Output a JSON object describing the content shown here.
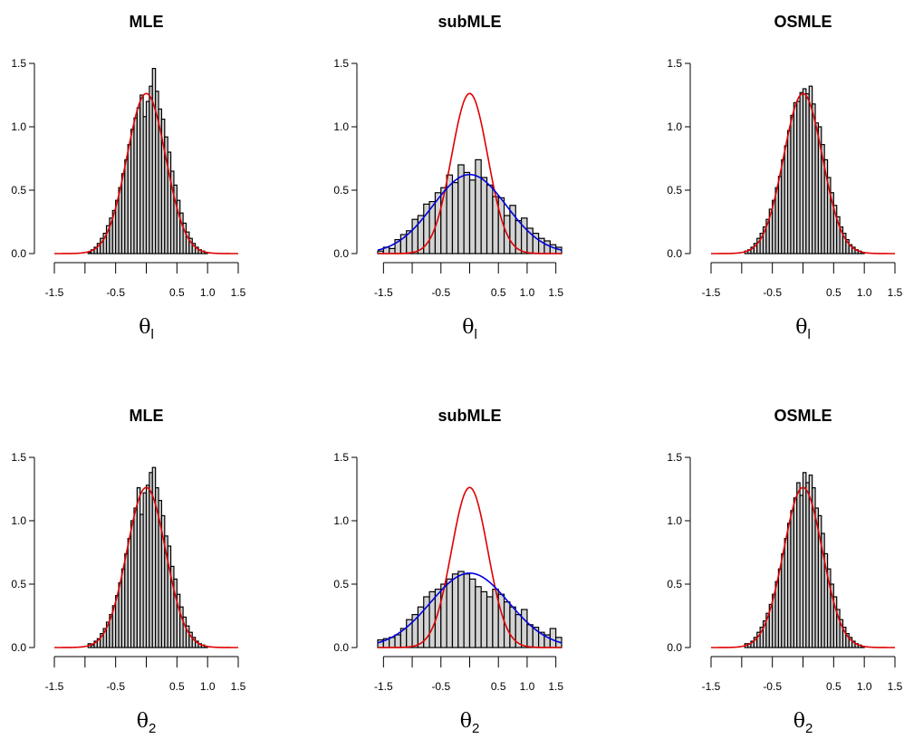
{
  "colors": {
    "normal_curve": "#e00000",
    "fitted_curve": "#0000e0",
    "bar_fill": "#d3d3d3",
    "bar_stroke": "#000000"
  },
  "chart_data": [
    {
      "type": "bar",
      "title": "MLE",
      "xlabel_base": "θ",
      "xlabel_sub": "l",
      "xlim": [
        -1.5,
        1.5
      ],
      "ylim": [
        0,
        1.5
      ],
      "xticks": [
        -1.5,
        -1.0,
        -0.5,
        0.0,
        0.5,
        1.0,
        1.5
      ],
      "xtick_labels": [
        "-1.5",
        "",
        "-0.5",
        "",
        "0.5",
        "1.0",
        "1.5"
      ],
      "yticks": [
        0.0,
        0.5,
        1.0,
        1.5
      ],
      "ytick_labels": [
        "0.0",
        "0.5",
        "1.0",
        "1.5"
      ],
      "bin_start": -0.95,
      "bin_width": 0.05,
      "values": [
        0.01,
        0.03,
        0.05,
        0.08,
        0.12,
        0.16,
        0.22,
        0.28,
        0.34,
        0.42,
        0.52,
        0.63,
        0.74,
        0.86,
        0.98,
        1.07,
        1.15,
        1.25,
        1.08,
        1.2,
        1.32,
        1.46,
        1.28,
        1.14,
        1.06,
        0.92,
        0.8,
        0.65,
        0.54,
        0.42,
        0.32,
        0.24,
        0.17,
        0.12,
        0.08,
        0.05,
        0.03,
        0.02,
        0.01
      ],
      "series": [
        {
          "name": "",
          "kind": "normal",
          "mean": 0.0,
          "sd": 0.316,
          "color": "#e00000"
        }
      ]
    },
    {
      "type": "bar",
      "title": "subMLE",
      "xlabel_base": "θ",
      "xlabel_sub": "l",
      "xlim": [
        -1.6,
        1.6
      ],
      "ylim": [
        0,
        1.5
      ],
      "xticks": [
        -1.5,
        -1.0,
        -0.5,
        0.0,
        0.5,
        1.0,
        1.5
      ],
      "xtick_labels": [
        "-1.5",
        "",
        "-0.5",
        "",
        "0.5",
        "1.0",
        "1.5"
      ],
      "yticks": [
        0.0,
        0.5,
        1.0,
        1.5
      ],
      "ytick_labels": [
        "0.0",
        "0.5",
        "1.0",
        "1.5"
      ],
      "bin_start": -1.6,
      "bin_width": 0.1,
      "values": [
        0.02,
        0.05,
        0.04,
        0.11,
        0.15,
        0.18,
        0.27,
        0.3,
        0.39,
        0.41,
        0.48,
        0.52,
        0.62,
        0.56,
        0.7,
        0.64,
        0.58,
        0.74,
        0.6,
        0.54,
        0.45,
        0.44,
        0.3,
        0.38,
        0.26,
        0.28,
        0.2,
        0.16,
        0.12,
        0.1,
        0.07,
        0.05
      ],
      "series": [
        {
          "name": "",
          "kind": "normal",
          "mean": 0.0,
          "sd": 0.316,
          "color": "#e00000"
        },
        {
          "name": "",
          "kind": "normal",
          "mean": 0.0,
          "sd": 0.64,
          "color": "#0000e0"
        }
      ]
    },
    {
      "type": "bar",
      "title": "OSMLE",
      "xlabel_base": "θ",
      "xlabel_sub": "l",
      "xlim": [
        -1.5,
        1.5
      ],
      "ylim": [
        0,
        1.5
      ],
      "xticks": [
        -1.5,
        -1.0,
        -0.5,
        0.0,
        0.5,
        1.0,
        1.5
      ],
      "xtick_labels": [
        "-1.5",
        "",
        "-0.5",
        "",
        "0.5",
        "1.0",
        "1.5"
      ],
      "yticks": [
        0.0,
        0.5,
        1.0,
        1.5
      ],
      "ytick_labels": [
        "0.0",
        "0.5",
        "1.0",
        "1.5"
      ],
      "bin_start": -0.95,
      "bin_width": 0.05,
      "values": [
        0.02,
        0.03,
        0.05,
        0.08,
        0.12,
        0.16,
        0.21,
        0.27,
        0.35,
        0.42,
        0.52,
        0.61,
        0.74,
        0.85,
        0.97,
        1.09,
        1.19,
        1.2,
        1.27,
        1.3,
        1.26,
        1.32,
        1.18,
        1.03,
        1.0,
        0.86,
        0.74,
        0.6,
        0.48,
        0.38,
        0.29,
        0.21,
        0.16,
        0.11,
        0.07,
        0.05,
        0.03,
        0.02,
        0.01
      ],
      "series": [
        {
          "name": "",
          "kind": "normal",
          "mean": 0.0,
          "sd": 0.316,
          "color": "#e00000"
        }
      ]
    },
    {
      "type": "bar",
      "title": "MLE",
      "xlabel_base": "θ",
      "xlabel_sub": "2",
      "xlim": [
        -1.5,
        1.5
      ],
      "ylim": [
        0,
        1.5
      ],
      "xticks": [
        -1.5,
        -1.0,
        -0.5,
        0.0,
        0.5,
        1.0,
        1.5
      ],
      "xtick_labels": [
        "-1.5",
        "",
        "-0.5",
        "",
        "0.5",
        "1.0",
        "1.5"
      ],
      "yticks": [
        0.0,
        0.5,
        1.0,
        1.5
      ],
      "ytick_labels": [
        "0.0",
        "0.5",
        "1.0",
        "1.5"
      ],
      "bin_start": -0.95,
      "bin_width": 0.05,
      "values": [
        0.03,
        0.02,
        0.05,
        0.07,
        0.11,
        0.15,
        0.2,
        0.26,
        0.33,
        0.41,
        0.51,
        0.62,
        0.74,
        0.86,
        1.0,
        1.1,
        1.26,
        1.05,
        1.22,
        1.28,
        1.38,
        1.42,
        1.26,
        1.16,
        1.04,
        0.88,
        0.8,
        0.64,
        0.54,
        0.42,
        0.32,
        0.24,
        0.17,
        0.12,
        0.08,
        0.05,
        0.03,
        0.02,
        0.01
      ],
      "series": [
        {
          "name": "",
          "kind": "normal",
          "mean": 0.0,
          "sd": 0.316,
          "color": "#e00000"
        }
      ]
    },
    {
      "type": "bar",
      "title": "subMLE",
      "xlabel_base": "θ",
      "xlabel_sub": "2",
      "xlim": [
        -1.6,
        1.6
      ],
      "ylim": [
        0,
        1.5
      ],
      "xticks": [
        -1.5,
        -1.0,
        -0.5,
        0.0,
        0.5,
        1.0,
        1.5
      ],
      "xtick_labels": [
        "-1.5",
        "",
        "-0.5",
        "",
        "0.5",
        "1.0",
        "1.5"
      ],
      "yticks": [
        0.0,
        0.5,
        1.0,
        1.5
      ],
      "ytick_labels": [
        "0.0",
        "0.5",
        "1.0",
        "1.5"
      ],
      "bin_start": -1.6,
      "bin_width": 0.1,
      "values": [
        0.06,
        0.07,
        0.08,
        0.1,
        0.15,
        0.22,
        0.26,
        0.32,
        0.4,
        0.44,
        0.46,
        0.5,
        0.54,
        0.58,
        0.6,
        0.58,
        0.54,
        0.48,
        0.44,
        0.4,
        0.46,
        0.42,
        0.36,
        0.32,
        0.26,
        0.3,
        0.18,
        0.16,
        0.12,
        0.1,
        0.15,
        0.08
      ],
      "series": [
        {
          "name": "",
          "kind": "normal",
          "mean": 0.0,
          "sd": 0.316,
          "color": "#e00000"
        },
        {
          "name": "",
          "kind": "normal",
          "mean": 0.0,
          "sd": 0.68,
          "color": "#0000e0"
        }
      ]
    },
    {
      "type": "bar",
      "title": "OSMLE",
      "xlabel_base": "θ",
      "xlabel_sub": "2",
      "xlim": [
        -1.5,
        1.5
      ],
      "ylim": [
        0,
        1.5
      ],
      "xticks": [
        -1.5,
        -1.0,
        -0.5,
        0.0,
        0.5,
        1.0,
        1.5
      ],
      "xtick_labels": [
        "-1.5",
        "",
        "-0.5",
        "",
        "0.5",
        "1.0",
        "1.5"
      ],
      "yticks": [
        0.0,
        0.5,
        1.0,
        1.5
      ],
      "ytick_labels": [
        "0.0",
        "0.5",
        "1.0",
        "1.5"
      ],
      "bin_start": -0.95,
      "bin_width": 0.05,
      "values": [
        0.03,
        0.03,
        0.05,
        0.08,
        0.12,
        0.16,
        0.21,
        0.27,
        0.34,
        0.42,
        0.52,
        0.62,
        0.74,
        0.86,
        0.98,
        1.08,
        1.18,
        1.3,
        1.2,
        1.38,
        1.3,
        1.36,
        1.26,
        1.1,
        1.04,
        0.9,
        0.74,
        0.62,
        0.5,
        0.4,
        0.3,
        0.22,
        0.16,
        0.11,
        0.08,
        0.05,
        0.03,
        0.02,
        0.01
      ],
      "series": [
        {
          "name": "",
          "kind": "normal",
          "mean": 0.0,
          "sd": 0.316,
          "color": "#e00000"
        }
      ]
    }
  ]
}
